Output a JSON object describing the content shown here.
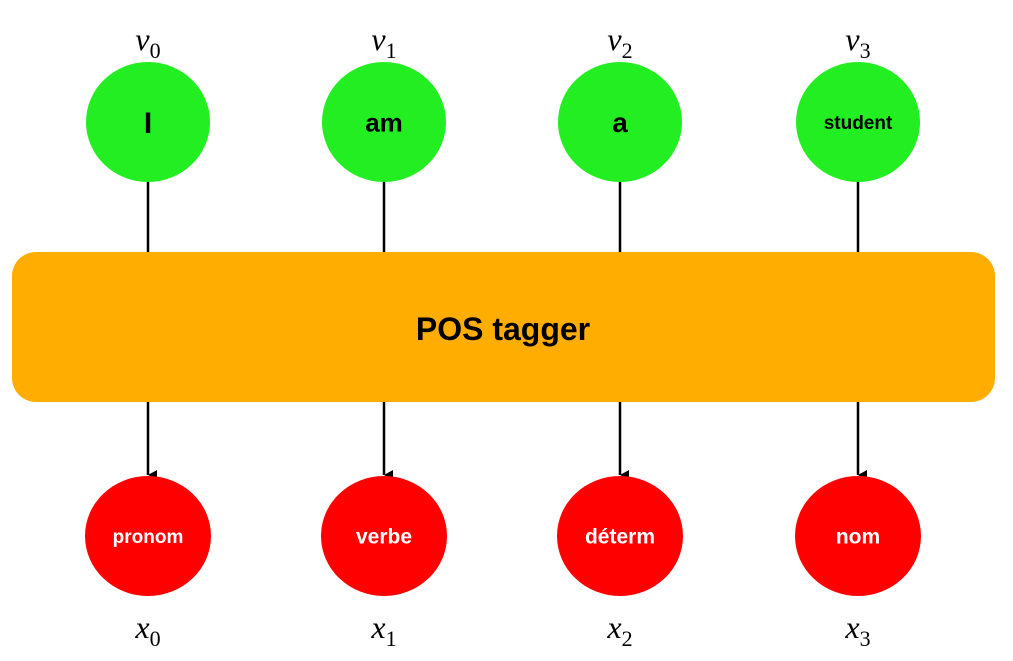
{
  "colors": {
    "input_node": "#22ee22",
    "output_node": "#ff0000",
    "tagger_box": "#ffad00",
    "line": "#000000"
  },
  "tagger": {
    "label": "POS tagger"
  },
  "inputs": [
    {
      "var": "v",
      "sub": "0",
      "word": "I"
    },
    {
      "var": "v",
      "sub": "1",
      "word": "am"
    },
    {
      "var": "v",
      "sub": "2",
      "word": "a"
    },
    {
      "var": "v",
      "sub": "3",
      "word": "student"
    }
  ],
  "outputs": [
    {
      "var": "x",
      "sub": "0",
      "tag": "pronom"
    },
    {
      "var": "x",
      "sub": "1",
      "tag": "verbe"
    },
    {
      "var": "x",
      "sub": "2",
      "tag": "déterm"
    },
    {
      "var": "x",
      "sub": "3",
      "tag": "nom"
    }
  ]
}
